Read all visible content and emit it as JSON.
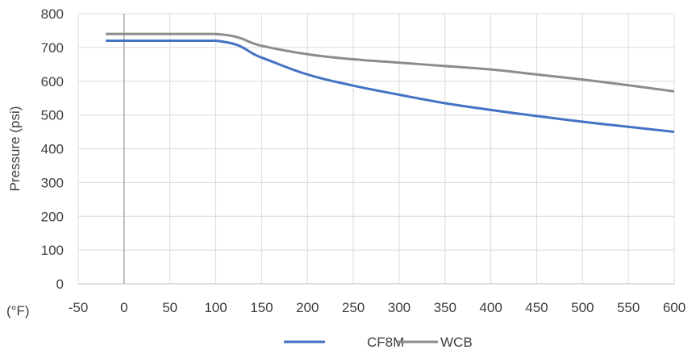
{
  "chart_data": {
    "type": "line",
    "title": "",
    "xlabel": "(°F)",
    "ylabel": "Pressure (psi)",
    "xlim": [
      -50,
      600
    ],
    "ylim": [
      0,
      800
    ],
    "x_ticks": [
      -50,
      0,
      50,
      100,
      150,
      200,
      250,
      300,
      350,
      400,
      450,
      500,
      550,
      600
    ],
    "y_ticks": [
      0,
      100,
      200,
      300,
      400,
      500,
      600,
      700,
      800
    ],
    "grid": true,
    "legend_position": "bottom",
    "series": [
      {
        "name": "CF8M",
        "color": "#4472C4",
        "points": [
          [
            -20,
            720
          ],
          [
            100,
            720
          ],
          [
            150,
            670
          ],
          [
            200,
            620
          ],
          [
            250,
            587
          ],
          [
            300,
            560
          ],
          [
            350,
            535
          ],
          [
            400,
            515
          ],
          [
            450,
            497
          ],
          [
            500,
            480
          ],
          [
            550,
            465
          ],
          [
            600,
            450
          ]
        ]
      },
      {
        "name": "WCB",
        "color": "#8C8C8C",
        "points": [
          [
            -20,
            740
          ],
          [
            100,
            740
          ],
          [
            150,
            705
          ],
          [
            200,
            680
          ],
          [
            250,
            665
          ],
          [
            300,
            655
          ],
          [
            350,
            645
          ],
          [
            400,
            635
          ],
          [
            450,
            620
          ],
          [
            500,
            605
          ],
          [
            550,
            588
          ],
          [
            600,
            570
          ]
        ]
      }
    ]
  }
}
